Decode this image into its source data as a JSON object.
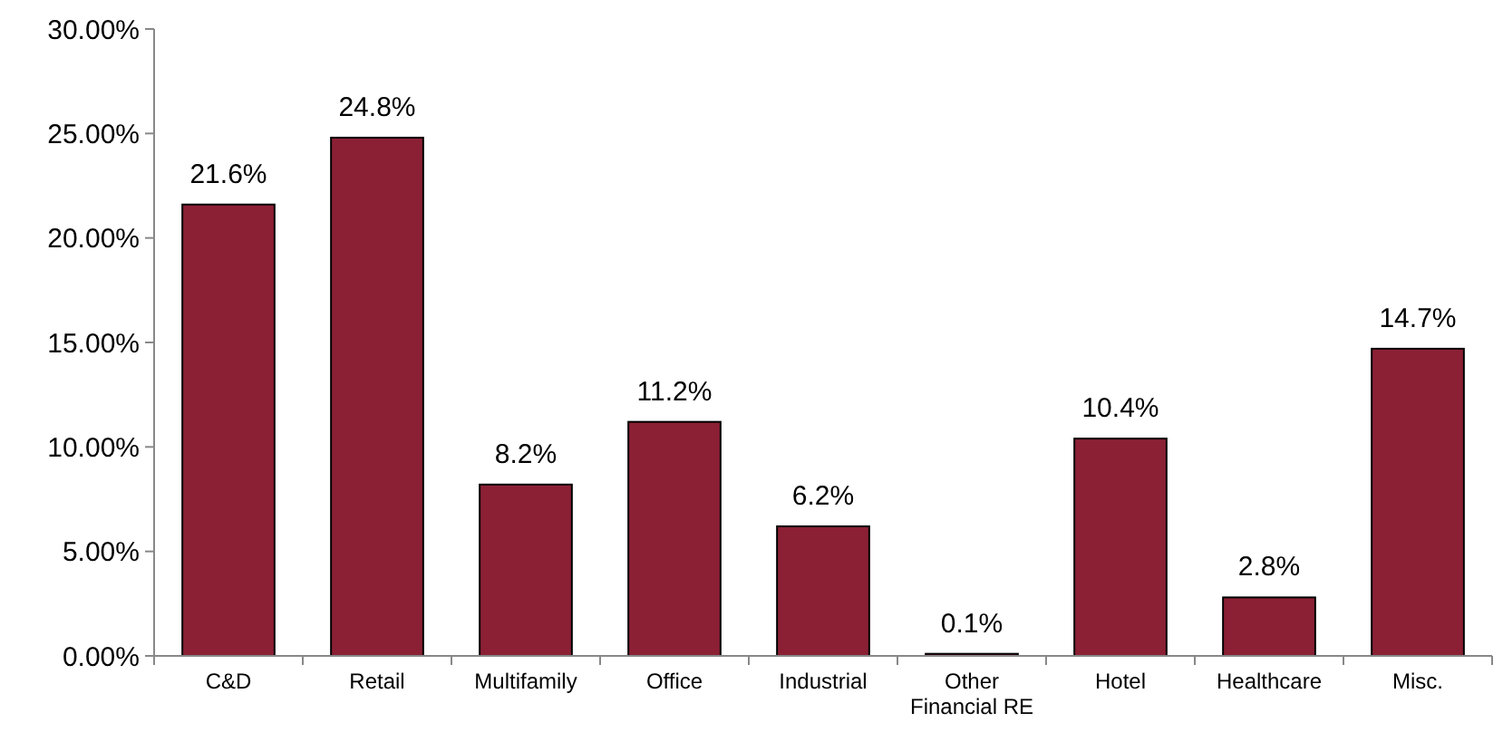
{
  "chart_data": {
    "type": "bar",
    "categories": [
      "C&D",
      "Retail",
      "Multifamily",
      "Office",
      "Industrial",
      "Other Financial RE",
      "Hotel",
      "Healthcare",
      "Misc."
    ],
    "values": [
      21.6,
      24.8,
      8.2,
      11.2,
      6.2,
      0.1,
      10.4,
      2.8,
      14.7
    ],
    "value_labels": [
      "21.6%",
      "24.8%",
      "8.2%",
      "11.2%",
      "6.2%",
      "0.1%",
      "10.4%",
      "2.8%",
      "14.7%"
    ],
    "color": "#8b2035",
    "ylim": [
      0,
      30
    ],
    "yticks": [
      {
        "value": 0,
        "label": "0.00%"
      },
      {
        "value": 5,
        "label": "5.00%"
      },
      {
        "value": 10,
        "label": "10.00%"
      },
      {
        "value": 15,
        "label": "15.00%"
      },
      {
        "value": 20,
        "label": "20.00%"
      },
      {
        "value": 25,
        "label": "25.00%"
      },
      {
        "value": 30,
        "label": "30.00%"
      }
    ],
    "grid": false
  }
}
